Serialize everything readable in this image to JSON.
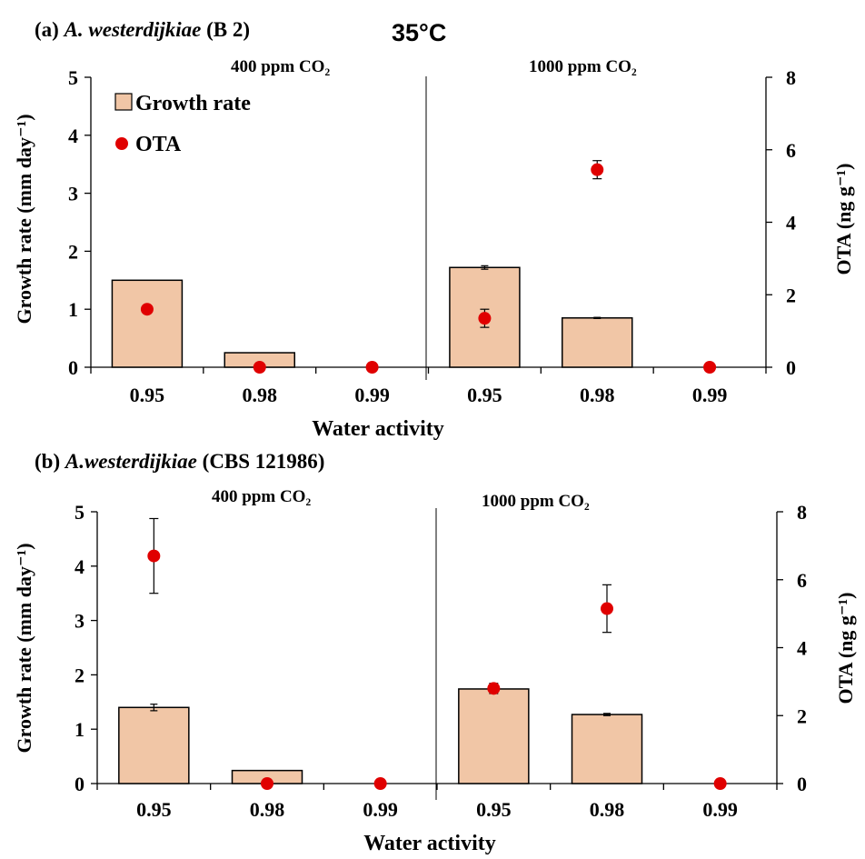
{
  "header_temp": "35°C",
  "chart_data": [
    {
      "type": "bar",
      "title_prefix": "(a) ",
      "title_species": "A. westerdijkiae",
      "title_suffix": " (B 2)",
      "xlabel": "Water activity",
      "ylabel": "Growth rate (mm day⁻¹)",
      "ylabel2": "OTA (ng g⁻¹)",
      "ylim": [
        0,
        5
      ],
      "y2lim": [
        0,
        8
      ],
      "yticks": [
        0,
        1,
        2,
        3,
        4,
        5
      ],
      "y2ticks": [
        0,
        2,
        4,
        6,
        8
      ],
      "categories": [
        "0.95",
        "0.98",
        "0.99",
        "0.95",
        "0.98",
        "0.99"
      ],
      "groups": [
        "400 ppm CO₂",
        "1000 ppm CO₂"
      ],
      "legend": [
        "Growth rate",
        "OTA"
      ],
      "legend_position": "top-left",
      "series": [
        {
          "name": "Growth rate",
          "axis": "left",
          "kind": "bar",
          "values": [
            1.5,
            0.25,
            0,
            1.72,
            0.85,
            0
          ],
          "errors": [
            0,
            0,
            0,
            0.03,
            0.01,
            0
          ]
        },
        {
          "name": "OTA",
          "axis": "right",
          "kind": "scatter",
          "values": [
            1.6,
            0,
            0,
            1.35,
            5.45,
            0
          ],
          "errors": [
            0,
            0,
            0,
            0.25,
            0.25,
            0
          ]
        }
      ]
    },
    {
      "type": "bar",
      "title_prefix": "(b) ",
      "title_species": "A.westerdijkiae",
      "title_suffix": " (CBS 121986)",
      "xlabel": "Water activity",
      "ylabel": "Growth rate (mm day⁻¹)",
      "ylabel2": "OTA (ng g⁻¹)",
      "ylim": [
        0,
        5
      ],
      "y2lim": [
        0,
        8
      ],
      "yticks": [
        0,
        1,
        2,
        3,
        4,
        5
      ],
      "y2ticks": [
        0,
        2,
        4,
        6,
        8
      ],
      "categories": [
        "0.95",
        "0.98",
        "0.99",
        "0.95",
        "0.98",
        "0.99"
      ],
      "groups": [
        "400 ppm CO₂",
        "1000 ppm CO₂"
      ],
      "series": [
        {
          "name": "Growth rate",
          "axis": "left",
          "kind": "bar",
          "values": [
            1.4,
            0.24,
            0,
            1.74,
            1.27,
            0
          ],
          "errors": [
            0.06,
            0,
            0,
            0,
            0.02,
            0
          ]
        },
        {
          "name": "OTA",
          "axis": "right",
          "kind": "scatter",
          "values": [
            6.7,
            0,
            0,
            2.8,
            5.15,
            0
          ],
          "errors": [
            1.1,
            0,
            0,
            0.15,
            0.7,
            0
          ]
        }
      ]
    }
  ],
  "colors": {
    "bar_fill": "#f1c6a6",
    "bar_stroke": "#000000",
    "marker": "#e00000"
  }
}
